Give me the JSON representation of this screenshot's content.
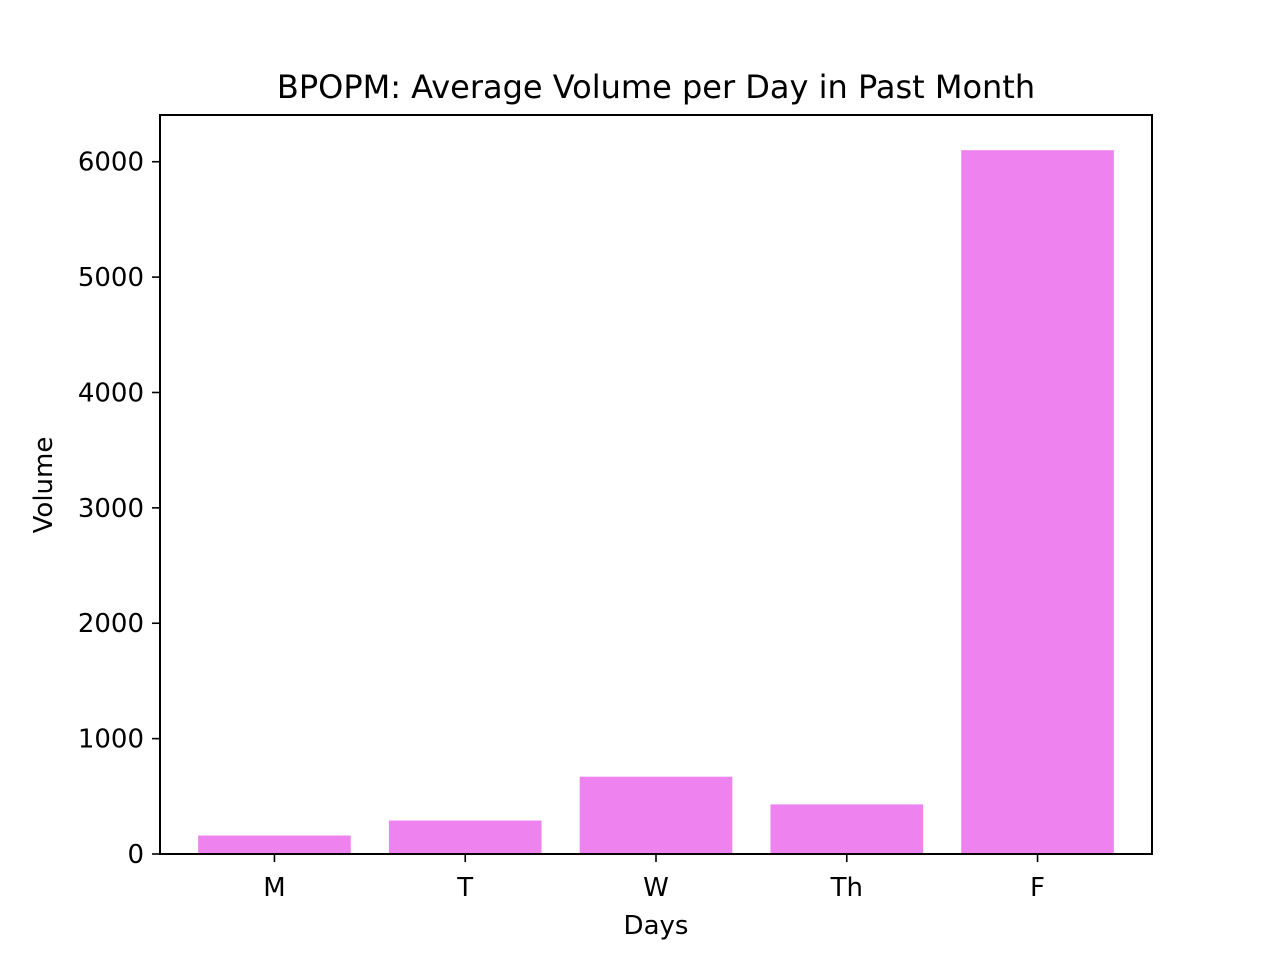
{
  "chart_data": {
    "type": "bar",
    "title": "BPOPM: Average Volume per Day in Past Month",
    "xlabel": "Days",
    "ylabel": "Volume",
    "categories": [
      "M",
      "T",
      "W",
      "Th",
      "F"
    ],
    "values": [
      160,
      290,
      670,
      430,
      6100
    ],
    "ylim": [
      0,
      6405
    ],
    "yticks": [
      0,
      1000,
      2000,
      3000,
      4000,
      5000,
      6000
    ],
    "grid": false,
    "legend": "none",
    "bar_color": "#ee82ee"
  }
}
